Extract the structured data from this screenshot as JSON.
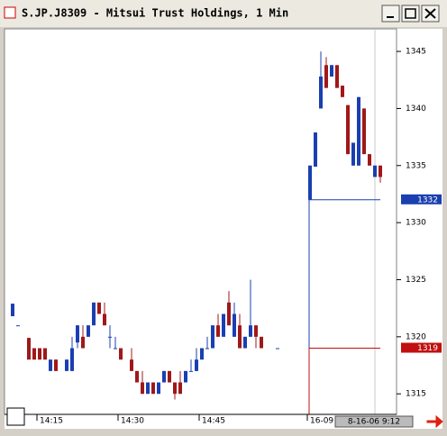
{
  "window_title": "S.JP.J8309 - Mitsui Trust Holdings, 1 Min",
  "chart_data": {
    "type": "candlestick",
    "categories": [
      null,
      null,
      null,
      null,
      null,
      "14:15",
      null,
      null,
      null,
      null,
      null,
      null,
      null,
      null,
      null,
      null,
      null,
      null,
      null,
      null,
      "14:30",
      null,
      null,
      null,
      null,
      null,
      null,
      null,
      null,
      null,
      null,
      null,
      null,
      null,
      null,
      "14:45",
      null,
      null,
      null,
      null,
      null,
      null,
      null,
      null,
      null,
      null,
      null,
      null,
      null,
      null,
      null,
      null,
      null,
      null,
      null,
      "16-09",
      null,
      null,
      null,
      null,
      null,
      null,
      null,
      null,
      null,
      null,
      null,
      null,
      null
    ],
    "ohlc": [
      [
        1321.8,
        1322.9,
        1321.8,
        1322.9
      ],
      [
        1321,
        1321,
        1321,
        1321
      ],
      null,
      [
        1319.9,
        1319.9,
        1318,
        1318
      ],
      [
        1319,
        1319,
        1318,
        1318
      ],
      [
        1319,
        1319,
        1318,
        1318
      ],
      [
        1319,
        1319,
        1318,
        1318
      ],
      [
        1317,
        1318,
        1317,
        1318
      ],
      [
        1318,
        1318,
        1317,
        1317
      ],
      null,
      [
        1317,
        1318,
        1317,
        1318
      ],
      [
        1317,
        1320,
        1317,
        1319
      ],
      [
        1319.5,
        1321,
        1319,
        1321
      ],
      [
        1320,
        1321,
        1319,
        1319
      ],
      [
        1320,
        1321,
        1320,
        1321
      ],
      [
        1321,
        1323,
        1321,
        1323
      ],
      [
        1323,
        1323,
        1322,
        1322
      ],
      [
        1322,
        1323,
        1321,
        1321
      ],
      [
        1320,
        1321,
        1319,
        1320
      ],
      [
        1319,
        1320,
        1319,
        1319
      ],
      [
        1319,
        1319,
        1318,
        1318
      ],
      null,
      [
        1318,
        1319,
        1317,
        1317
      ],
      [
        1317,
        1317,
        1316,
        1316
      ],
      [
        1316,
        1317,
        1315,
        1315
      ],
      [
        1315,
        1316,
        1315,
        1316
      ],
      [
        1316,
        1316,
        1315,
        1315
      ],
      [
        1315,
        1316,
        1315,
        1316
      ],
      [
        1316,
        1317,
        1316,
        1317
      ],
      [
        1317,
        1317,
        1316,
        1316
      ],
      [
        1316,
        1316,
        1314.5,
        1315
      ],
      [
        1316,
        1317,
        1315,
        1315
      ],
      [
        1316,
        1317,
        1316,
        1317
      ],
      [
        1317,
        1318,
        1317,
        1317
      ],
      [
        1317,
        1319,
        1317,
        1318
      ],
      [
        1318,
        1319,
        1318,
        1319
      ],
      [
        1319,
        1320,
        1319,
        1319
      ],
      [
        1319,
        1321,
        1319,
        1321
      ],
      [
        1321,
        1322,
        1320,
        1320
      ],
      [
        1320,
        1322,
        1320,
        1322
      ],
      [
        1323,
        1324,
        1321,
        1321
      ],
      [
        1320,
        1323,
        1320,
        1322
      ],
      [
        1321,
        1322,
        1319,
        1319
      ],
      [
        1319,
        1320,
        1319,
        1320
      ],
      [
        1320,
        1325,
        1320,
        1321
      ],
      [
        1321,
        1321,
        1319,
        1320
      ],
      [
        1320,
        1320,
        1319,
        1319
      ],
      null,
      null,
      [
        1319,
        1319,
        1319,
        1319
      ],
      null,
      null,
      null,
      null,
      null,
      [
        1332,
        1335,
        1332,
        1335
      ],
      [
        1334.9,
        1337.9,
        1334.9,
        1337.9
      ],
      [
        1340,
        1345,
        1340,
        1342.8
      ],
      [
        1343.8,
        1344.5,
        1341.8,
        1341.8
      ],
      [
        1342.8,
        1343.8,
        1342.8,
        1343.8
      ],
      [
        1343.8,
        1343.8,
        1341.8,
        1341.8
      ],
      [
        1342,
        1342,
        1341,
        1341
      ],
      [
        1340.3,
        1340.3,
        1336,
        1336
      ],
      [
        1335,
        1337,
        1335,
        1337
      ],
      [
        1335,
        1341,
        1335,
        1341
      ],
      [
        1340,
        1340,
        1336,
        1336
      ],
      [
        1336,
        1336,
        1335,
        1335
      ],
      [
        1334,
        1335,
        1334,
        1335
      ],
      [
        1335,
        1335,
        1333.5,
        1334
      ]
    ],
    "up_color": "#1a3fb0",
    "down_color": "#a01818",
    "ylim": [
      1313.2,
      1346.9
    ],
    "yticks": [
      1315,
      1320,
      1325,
      1330,
      1335,
      1340,
      1345
    ],
    "markers": [
      {
        "value": 1332,
        "label": "1332",
        "color": "#1a3fb0"
      },
      {
        "value": 1319,
        "label": "1319",
        "color": "#c01010"
      }
    ],
    "cursor_label": "8-16-06  9:12"
  }
}
